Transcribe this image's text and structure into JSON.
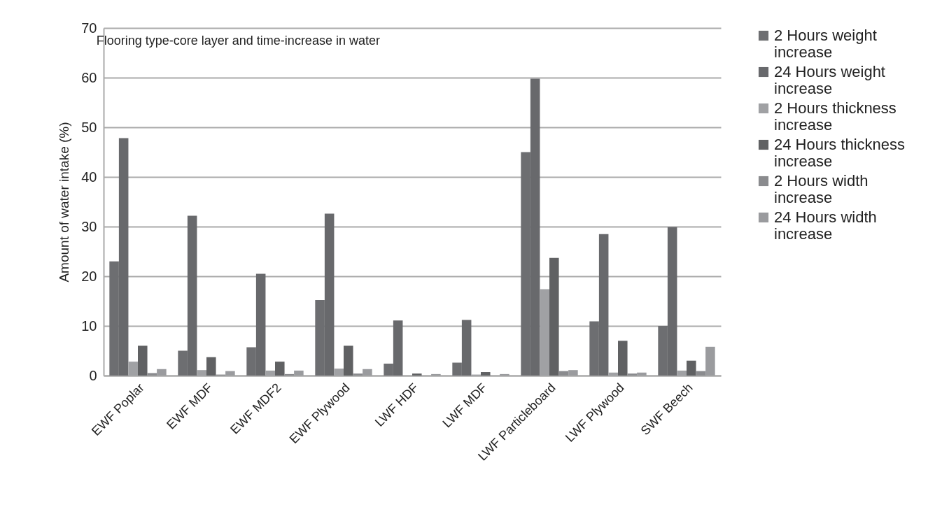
{
  "chart_data": {
    "type": "bar",
    "title": "Flooring type-core layer and time-increase in water",
    "ylabel": "Amount of water intake (%)",
    "categories": [
      "EWF Poplar",
      "EWF MDF",
      "EWF MDF2",
      "EWF Plywood",
      "LWF HDF",
      "LWF MDF",
      "LWF Particleboard",
      "LWF Plywood",
      "SWF Beech"
    ],
    "series": [
      {
        "name": "2 Hours weight increase",
        "color": "#6d6e71",
        "values": [
          23,
          5,
          5.7,
          15.2,
          2.4,
          2.6,
          45,
          10.9,
          10
        ]
      },
      {
        "name": "24 Hours weight increase",
        "color": "#68696c",
        "values": [
          47.8,
          32.2,
          20.5,
          32.6,
          11.1,
          11.2,
          59.8,
          28.5,
          29.9
        ]
      },
      {
        "name": "2 Hours thickness increase",
        "color": "#a0a1a4",
        "values": [
          2.8,
          1.1,
          1.0,
          1.4,
          null,
          0.2,
          17.4,
          0.6,
          1.0
        ]
      },
      {
        "name": "24 Hours thickness increase",
        "color": "#606163",
        "values": [
          6.0,
          3.7,
          2.8,
          6.0,
          0.4,
          0.7,
          23.7,
          7.0,
          3.0
        ]
      },
      {
        "name": "2 Hours width increase",
        "color": "#8a8b8e",
        "values": [
          0.5,
          0.2,
          0.3,
          0.4,
          null,
          null,
          0.9,
          0.4,
          0.9
        ]
      },
      {
        "name": "24 Hours width increase",
        "color": "#9a9b9e",
        "values": [
          1.3,
          0.9,
          1.0,
          1.3,
          0.3,
          0.3,
          1.1,
          0.6,
          5.8
        ]
      }
    ],
    "ylim": [
      0,
      70
    ],
    "yticks": [
      0,
      10,
      20,
      30,
      40,
      50,
      60,
      70
    ],
    "grid": "y",
    "legend": "right"
  }
}
